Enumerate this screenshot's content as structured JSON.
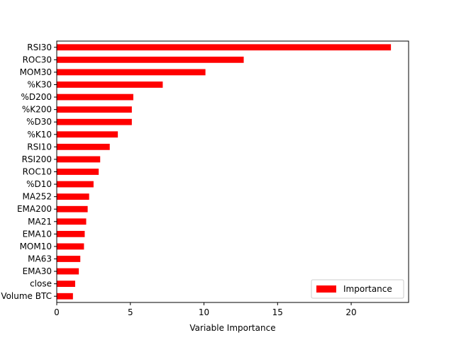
{
  "chart_data": {
    "type": "bar",
    "orientation": "horizontal",
    "categories": [
      "RSI30",
      "ROC30",
      "MOM30",
      "%K30",
      "%D200",
      "%K200",
      "%D30",
      "%K10",
      "RSI10",
      "RSI200",
      "ROC10",
      "%D10",
      "MA252",
      "EMA200",
      "MA21",
      "EMA10",
      "MOM10",
      "MA63",
      "EMA30",
      "close",
      "Volume BTC"
    ],
    "series": [
      {
        "name": "Importance",
        "color": "#ff0000",
        "values": [
          22.7,
          12.7,
          10.1,
          7.2,
          5.2,
          5.1,
          5.1,
          4.15,
          3.6,
          2.95,
          2.85,
          2.5,
          2.2,
          2.1,
          2.0,
          1.9,
          1.85,
          1.6,
          1.5,
          1.25,
          1.1
        ]
      }
    ],
    "title": "",
    "xlabel": "Variable Importance",
    "ylabel": "",
    "xlim": [
      0,
      23.9
    ],
    "xticks": [
      0,
      5,
      10,
      15,
      20
    ],
    "grid": false,
    "legend_position": "lower-right"
  }
}
